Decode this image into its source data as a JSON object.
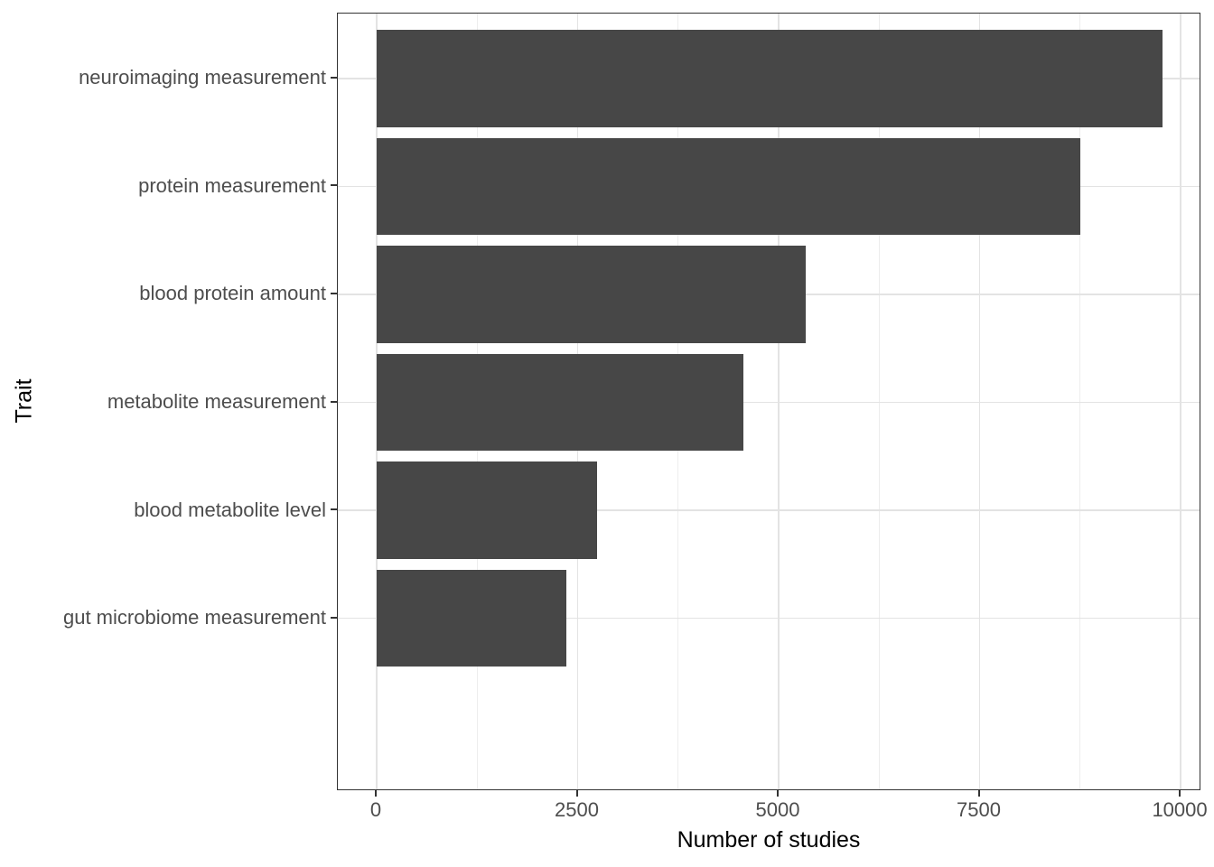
{
  "chart_data": {
    "type": "bar",
    "orientation": "horizontal",
    "title": "",
    "xlabel": "Number of studies",
    "ylabel": "Trait",
    "categories": [
      "neuroimaging measurement",
      "protein measurement",
      "blood protein amount",
      "metabolite measurement",
      "blood metabolite level",
      "gut microbiome measurement"
    ],
    "values": [
      9775,
      8750,
      5340,
      4560,
      2740,
      2360
    ],
    "x_ticks": [
      0,
      2500,
      5000,
      7500,
      10000
    ],
    "x_tick_labels": [
      "0",
      "2500",
      "5000",
      "7500",
      "10000"
    ],
    "x_minor_gridlines": [
      1250,
      3750,
      6250,
      8750
    ],
    "xlim": [
      -483,
      10258
    ],
    "grid": "on",
    "legend": "none",
    "colors": {
      "bar_fill": "#474747",
      "panel_border": "#333333",
      "grid_major": "#e3e3e3",
      "grid_minor": "#ededed",
      "tick_mark": "#333333",
      "axis_text": "#4d4d4d",
      "axis_title": "#000000",
      "background": "#ffffff"
    }
  }
}
